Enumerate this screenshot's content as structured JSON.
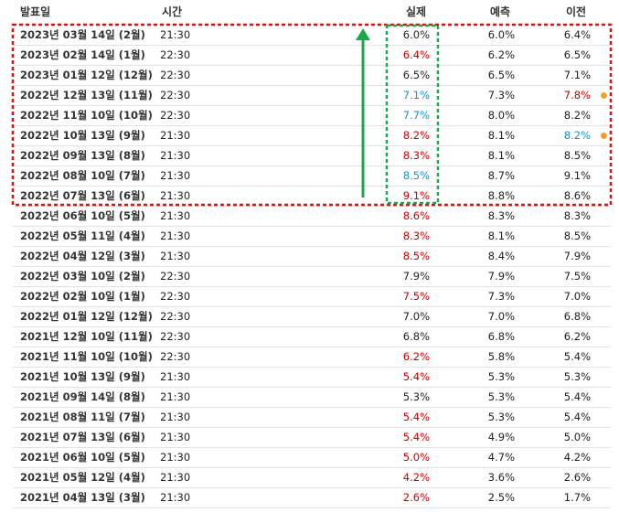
{
  "table": {
    "header": [
      "발표일",
      "시간",
      "실제",
      "예측",
      "이전"
    ],
    "rows": [
      {
        "date": "2023년 03월 14일 (2월)",
        "time": "21:30",
        "actual": "6.0%",
        "forecast": "6.0%",
        "previous": "6.4%"
      },
      {
        "date": "2023년 02월 14일 (1월)",
        "time": "22:30",
        "actual": "6.4%",
        "forecast": "6.2%",
        "previous": "6.5%",
        "actual_color": "#cc0000"
      },
      {
        "date": "2023년 01월 12일 (12월)",
        "time": "22:30",
        "actual": "6.5%",
        "forecast": "6.5%",
        "previous": "7.1%"
      },
      {
        "date": "2022년 12월 13일 (11월)",
        "time": "22:30",
        "actual": "7.1%",
        "forecast": "7.3%",
        "previous": "7.8%",
        "actual_color": "#1f8fc2",
        "previous_color": "#cc0000",
        "marker_color": "#f0a030"
      },
      {
        "date": "2022년 11월 10일 (10월)",
        "time": "22:30",
        "actual": "7.7%",
        "forecast": "8.0%",
        "previous": "8.2%",
        "actual_color": "#1f8fc2"
      },
      {
        "date": "2022년 10월 13일 (9월)",
        "time": "21:30",
        "actual": "8.2%",
        "forecast": "8.1%",
        "previous": "8.2%",
        "actual_color": "#cc0000",
        "previous_color": "#1f8fc2",
        "marker_color": "#f0a030"
      },
      {
        "date": "2022년 09월 13일 (8월)",
        "time": "21:30",
        "actual": "8.3%",
        "forecast": "8.1%",
        "previous": "8.5%",
        "actual_color": "#cc0000"
      },
      {
        "date": "2022년 08월 10일 (7월)",
        "time": "21:30",
        "actual": "8.5%",
        "forecast": "8.7%",
        "previous": "9.1%",
        "actual_color": "#1f8fc2"
      },
      {
        "date": "2022년 07월 13일 (6월)",
        "time": "21:30",
        "actual": "9.1%",
        "forecast": "8.8%",
        "previous": "8.6%",
        "actual_color": "#cc0000"
      },
      {
        "date": "2022년 06월 10일 (5월)",
        "time": "21:30",
        "actual": "8.6%",
        "forecast": "8.3%",
        "previous": "8.3%",
        "actual_color": "#cc0000"
      },
      {
        "date": "2022년 05월 11일 (4월)",
        "time": "21:30",
        "actual": "8.3%",
        "forecast": "8.1%",
        "previous": "8.5%",
        "actual_color": "#cc0000"
      },
      {
        "date": "2022년 04월 12일 (3월)",
        "time": "21:30",
        "actual": "8.5%",
        "forecast": "8.4%",
        "previous": "7.9%",
        "actual_color": "#cc0000"
      },
      {
        "date": "2022년 03월 10일 (2월)",
        "time": "22:30",
        "actual": "7.9%",
        "forecast": "7.9%",
        "previous": "7.5%"
      },
      {
        "date": "2022년 02월 10일 (1월)",
        "time": "22:30",
        "actual": "7.5%",
        "forecast": "7.3%",
        "previous": "7.0%",
        "actual_color": "#cc0000"
      },
      {
        "date": "2022년 01월 12일 (12월)",
        "time": "22:30",
        "actual": "7.0%",
        "forecast": "7.0%",
        "previous": "6.8%"
      },
      {
        "date": "2021년 12월 10일 (11월)",
        "time": "22:30",
        "actual": "6.8%",
        "forecast": "6.8%",
        "previous": "6.2%"
      },
      {
        "date": "2021년 11월 10일 (10월)",
        "time": "22:30",
        "actual": "6.2%",
        "forecast": "5.8%",
        "previous": "5.4%",
        "actual_color": "#cc0000"
      },
      {
        "date": "2021년 10월 13일 (9월)",
        "time": "21:30",
        "actual": "5.4%",
        "forecast": "5.3%",
        "previous": "5.3%",
        "actual_color": "#cc0000"
      },
      {
        "date": "2021년 09월 14일 (8월)",
        "time": "21:30",
        "actual": "5.3%",
        "forecast": "5.3%",
        "previous": "5.4%"
      },
      {
        "date": "2021년 08월 11일 (7월)",
        "time": "21:30",
        "actual": "5.4%",
        "forecast": "5.3%",
        "previous": "5.4%",
        "actual_color": "#cc0000"
      },
      {
        "date": "2021년 07월 13일 (6월)",
        "time": "21:30",
        "actual": "5.4%",
        "forecast": "4.9%",
        "previous": "5.0%",
        "actual_color": "#cc0000"
      },
      {
        "date": "2021년 06월 10일 (5월)",
        "time": "21:30",
        "actual": "5.0%",
        "forecast": "4.7%",
        "previous": "4.2%",
        "actual_color": "#cc0000"
      },
      {
        "date": "2021년 05월 12일 (4월)",
        "time": "21:30",
        "actual": "4.2%",
        "forecast": "3.6%",
        "previous": "2.6%",
        "actual_color": "#cc0000"
      },
      {
        "date": "2021년 04월 13일 (3월)",
        "time": "21:30",
        "actual": "2.6%",
        "forecast": "2.5%",
        "previous": "1.7%",
        "actual_color": "#cc0000"
      }
    ]
  }
}
